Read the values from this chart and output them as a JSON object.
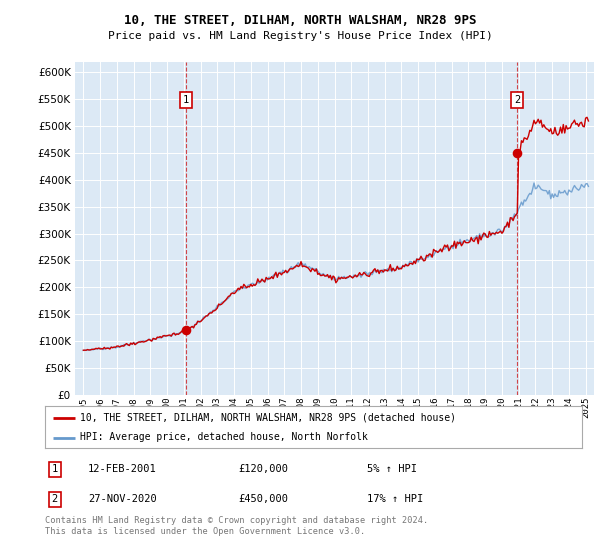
{
  "title": "10, THE STREET, DILHAM, NORTH WALSHAM, NR28 9PS",
  "subtitle": "Price paid vs. HM Land Registry's House Price Index (HPI)",
  "bg_color": "#dce9f5",
  "fig_bg_color": "#ffffff",
  "red_color": "#cc0000",
  "blue_color": "#6699cc",
  "sale1_x": 2001.12,
  "sale1_price": 120000,
  "sale2_x": 2020.92,
  "sale2_price": 450000,
  "ylim_min": 0,
  "ylim_max": 620000,
  "xlim_min": 1994.5,
  "xlim_max": 2025.5,
  "legend_line1": "10, THE STREET, DILHAM, NORTH WALSHAM, NR28 9PS (detached house)",
  "legend_line2": "HPI: Average price, detached house, North Norfolk",
  "annotation1_label": "1",
  "annotation1_date": "12-FEB-2001",
  "annotation1_price": "£120,000",
  "annotation1_pct": "5% ↑ HPI",
  "annotation2_label": "2",
  "annotation2_date": "27-NOV-2020",
  "annotation2_price": "£450,000",
  "annotation2_pct": "17% ↑ HPI",
  "footer": "Contains HM Land Registry data © Crown copyright and database right 2024.\nThis data is licensed under the Open Government Licence v3.0."
}
